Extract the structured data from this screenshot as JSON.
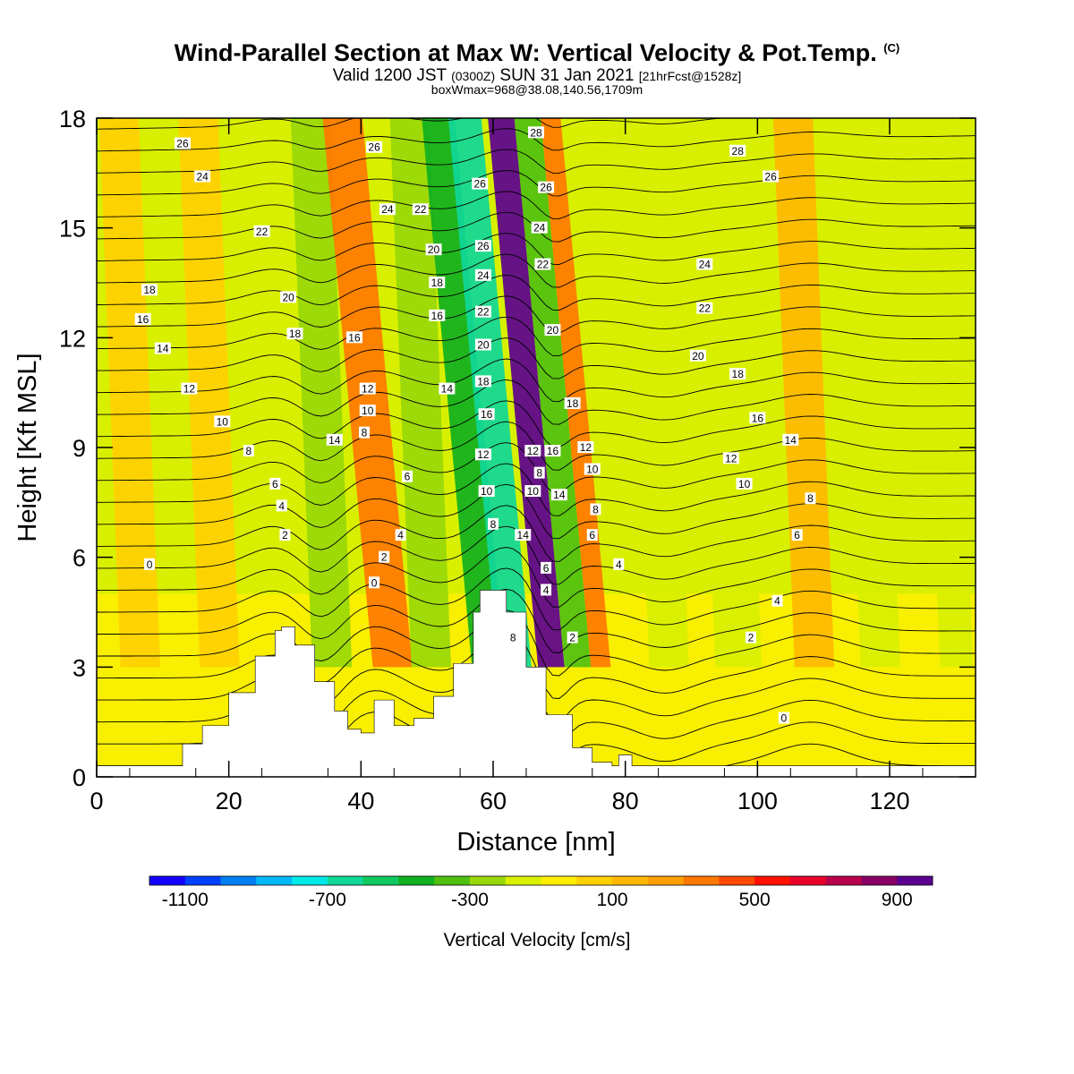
{
  "header": {
    "title": "Wind-Parallel Section at Max W: Vertical Velocity & Pot.Temp.",
    "title_mark": "(C)",
    "valid_prefix": "Valid 1200 JST",
    "valid_utc": "(0300Z)",
    "valid_date": "SUN 31 Jan 2021",
    "forecast": "[21hrFcst@1528z]",
    "boxw": "boxWmax=968@38.08,140.56,1709m"
  },
  "chart_data": {
    "type": "heatmap",
    "xlabel": "Distance [nm]",
    "ylabel": "Height [Kft MSL]",
    "xlim": [
      0,
      133
    ],
    "ylim": [
      0,
      18
    ],
    "x_ticks": [
      0,
      20,
      40,
      60,
      80,
      100,
      120
    ],
    "x_tick_labels": [
      "0",
      "20",
      "40",
      "60",
      "80",
      "100",
      "120"
    ],
    "y_ticks": [
      0,
      3,
      6,
      9,
      12,
      15,
      18
    ],
    "y_tick_labels": [
      "0",
      "3",
      "6",
      "9",
      "12",
      "15",
      "18"
    ],
    "colorbar": {
      "label": "Vertical Velocity [cm/s]",
      "tick_labels": [
        "-1100",
        "-700",
        "-300",
        "100",
        "500",
        "900"
      ],
      "colors": [
        "#1400ff",
        "#0040ff",
        "#0080f0",
        "#00b8f8",
        "#00e8e8",
        "#10d898",
        "#10c860",
        "#10b020",
        "#50c010",
        "#98d808",
        "#d8f000",
        "#ffee00",
        "#ffd000",
        "#ffb800",
        "#ffa000",
        "#ff7800",
        "#ff4800",
        "#ff1000",
        "#e8002c",
        "#b8004c",
        "#880064",
        "#5c0090"
      ]
    },
    "wind_max_kft": 0.968,
    "terrain_profile": {
      "x": [
        0,
        10,
        13,
        16,
        20,
        24,
        27,
        28,
        30,
        33,
        36,
        38,
        40,
        42,
        45,
        48,
        51,
        54,
        57,
        58,
        60,
        62,
        65,
        68,
        72,
        75,
        78,
        79,
        80,
        81,
        84,
        100,
        133
      ],
      "y": [
        0.3,
        0.3,
        0.9,
        1.4,
        2.3,
        3.3,
        4.0,
        4.1,
        3.6,
        2.6,
        1.8,
        1.3,
        1.2,
        2.1,
        1.4,
        1.6,
        2.2,
        3.1,
        4.5,
        5.1,
        5.1,
        4.5,
        3.0,
        1.7,
        0.8,
        0.4,
        0.3,
        0.6,
        0.6,
        0.3,
        0.3,
        0.3,
        0.3
      ]
    },
    "vertical_velocity_bands": [
      {
        "x": 2,
        "w": 6,
        "value": 100
      },
      {
        "x": 14,
        "w": 6,
        "value": 100
      },
      {
        "x": 31,
        "w": 6,
        "value": -200
      },
      {
        "x": 38,
        "w": 6,
        "value": 400
      },
      {
        "x": 46,
        "w": 6,
        "value": -250
      },
      {
        "x": 53,
        "w": 5,
        "value": -400
      },
      {
        "x": 57,
        "w": 5,
        "value": -600
      },
      {
        "x": 63,
        "w": 4,
        "value": 950
      },
      {
        "x": 67,
        "w": 4,
        "value": -350
      },
      {
        "x": 71,
        "w": 3,
        "value": 400
      },
      {
        "x": 82,
        "w": 6,
        "value": -100
      },
      {
        "x": 92,
        "w": 7,
        "value": -100
      },
      {
        "x": 104,
        "w": 6,
        "value": 150
      },
      {
        "x": 114,
        "w": 6,
        "value": -100
      },
      {
        "x": 126,
        "w": 5,
        "value": -150
      }
    ],
    "theta_contour_labels": [
      {
        "text": "26",
        "x": 13,
        "y": 17.3
      },
      {
        "text": "24",
        "x": 16,
        "y": 16.4
      },
      {
        "text": "22",
        "x": 25,
        "y": 14.9
      },
      {
        "text": "20",
        "x": 29,
        "y": 13.1
      },
      {
        "text": "18",
        "x": 30,
        "y": 12.1
      },
      {
        "text": "18",
        "x": 8,
        "y": 13.3
      },
      {
        "text": "16",
        "x": 7,
        "y": 12.5
      },
      {
        "text": "14",
        "x": 10,
        "y": 11.7
      },
      {
        "text": "12",
        "x": 14,
        "y": 10.6
      },
      {
        "text": "10",
        "x": 19,
        "y": 9.7
      },
      {
        "text": "8",
        "x": 23,
        "y": 8.9
      },
      {
        "text": "6",
        "x": 27,
        "y": 8.0
      },
      {
        "text": "4",
        "x": 28,
        "y": 7.4
      },
      {
        "text": "2",
        "x": 28.5,
        "y": 6.6
      },
      {
        "text": "0",
        "x": 8,
        "y": 5.8
      },
      {
        "text": "26",
        "x": 42,
        "y": 17.2
      },
      {
        "text": "24",
        "x": 44,
        "y": 15.5
      },
      {
        "text": "22",
        "x": 49,
        "y": 15.5
      },
      {
        "text": "20",
        "x": 51,
        "y": 14.4
      },
      {
        "text": "18",
        "x": 51.5,
        "y": 13.5
      },
      {
        "text": "16",
        "x": 51.5,
        "y": 12.6
      },
      {
        "text": "16",
        "x": 39,
        "y": 12.0
      },
      {
        "text": "14",
        "x": 53,
        "y": 10.6
      },
      {
        "text": "14",
        "x": 36,
        "y": 9.2
      },
      {
        "text": "12",
        "x": 41,
        "y": 10.6
      },
      {
        "text": "10",
        "x": 41,
        "y": 10.0
      },
      {
        "text": "8",
        "x": 40.5,
        "y": 9.4
      },
      {
        "text": "6",
        "x": 47,
        "y": 8.2
      },
      {
        "text": "4",
        "x": 46,
        "y": 6.6
      },
      {
        "text": "2",
        "x": 43.5,
        "y": 6.0
      },
      {
        "text": "0",
        "x": 42,
        "y": 5.3
      },
      {
        "text": "26",
        "x": 58,
        "y": 16.2
      },
      {
        "text": "26",
        "x": 58.5,
        "y": 14.5
      },
      {
        "text": "24",
        "x": 58.5,
        "y": 13.7
      },
      {
        "text": "22",
        "x": 58.5,
        "y": 12.7
      },
      {
        "text": "20",
        "x": 58.5,
        "y": 11.8
      },
      {
        "text": "18",
        "x": 58.5,
        "y": 10.8
      },
      {
        "text": "16",
        "x": 59,
        "y": 9.9
      },
      {
        "text": "12",
        "x": 58.5,
        "y": 8.8
      },
      {
        "text": "10",
        "x": 59,
        "y": 7.8
      },
      {
        "text": "8",
        "x": 60,
        "y": 6.9
      },
      {
        "text": "8",
        "x": 63,
        "y": 3.8
      },
      {
        "text": "28",
        "x": 66.5,
        "y": 17.6
      },
      {
        "text": "26",
        "x": 68,
        "y": 16.1
      },
      {
        "text": "24",
        "x": 67,
        "y": 15.0
      },
      {
        "text": "22",
        "x": 67.5,
        "y": 14.0
      },
      {
        "text": "20",
        "x": 69,
        "y": 12.2
      },
      {
        "text": "18",
        "x": 72,
        "y": 10.2
      },
      {
        "text": "16",
        "x": 69,
        "y": 8.9
      },
      {
        "text": "14",
        "x": 70,
        "y": 7.7
      },
      {
        "text": "12",
        "x": 66,
        "y": 8.9
      },
      {
        "text": "10",
        "x": 66,
        "y": 7.8
      },
      {
        "text": "8",
        "x": 67,
        "y": 8.3
      },
      {
        "text": "14",
        "x": 64.5,
        "y": 6.6
      },
      {
        "text": "6",
        "x": 68,
        "y": 5.7
      },
      {
        "text": "4",
        "x": 68,
        "y": 5.1
      },
      {
        "text": "2",
        "x": 72,
        "y": 3.8
      },
      {
        "text": "12",
        "x": 74,
        "y": 9.0
      },
      {
        "text": "10",
        "x": 75,
        "y": 8.4
      },
      {
        "text": "8",
        "x": 75.5,
        "y": 7.3
      },
      {
        "text": "6",
        "x": 75,
        "y": 6.6
      },
      {
        "text": "4",
        "x": 79,
        "y": 5.8
      },
      {
        "text": "28",
        "x": 97,
        "y": 17.1
      },
      {
        "text": "26",
        "x": 102,
        "y": 16.4
      },
      {
        "text": "24",
        "x": 92,
        "y": 14.0
      },
      {
        "text": "22",
        "x": 92,
        "y": 12.8
      },
      {
        "text": "20",
        "x": 91,
        "y": 11.5
      },
      {
        "text": "18",
        "x": 97,
        "y": 11.0
      },
      {
        "text": "16",
        "x": 100,
        "y": 9.8
      },
      {
        "text": "14",
        "x": 105,
        "y": 9.2
      },
      {
        "text": "12",
        "x": 96,
        "y": 8.7
      },
      {
        "text": "10",
        "x": 98,
        "y": 8.0
      },
      {
        "text": "8",
        "x": 108,
        "y": 7.6
      },
      {
        "text": "6",
        "x": 106,
        "y": 6.6
      },
      {
        "text": "4",
        "x": 103,
        "y": 4.8
      },
      {
        "text": "2",
        "x": 99,
        "y": 3.8
      },
      {
        "text": "0",
        "x": 104,
        "y": 1.6
      }
    ]
  }
}
